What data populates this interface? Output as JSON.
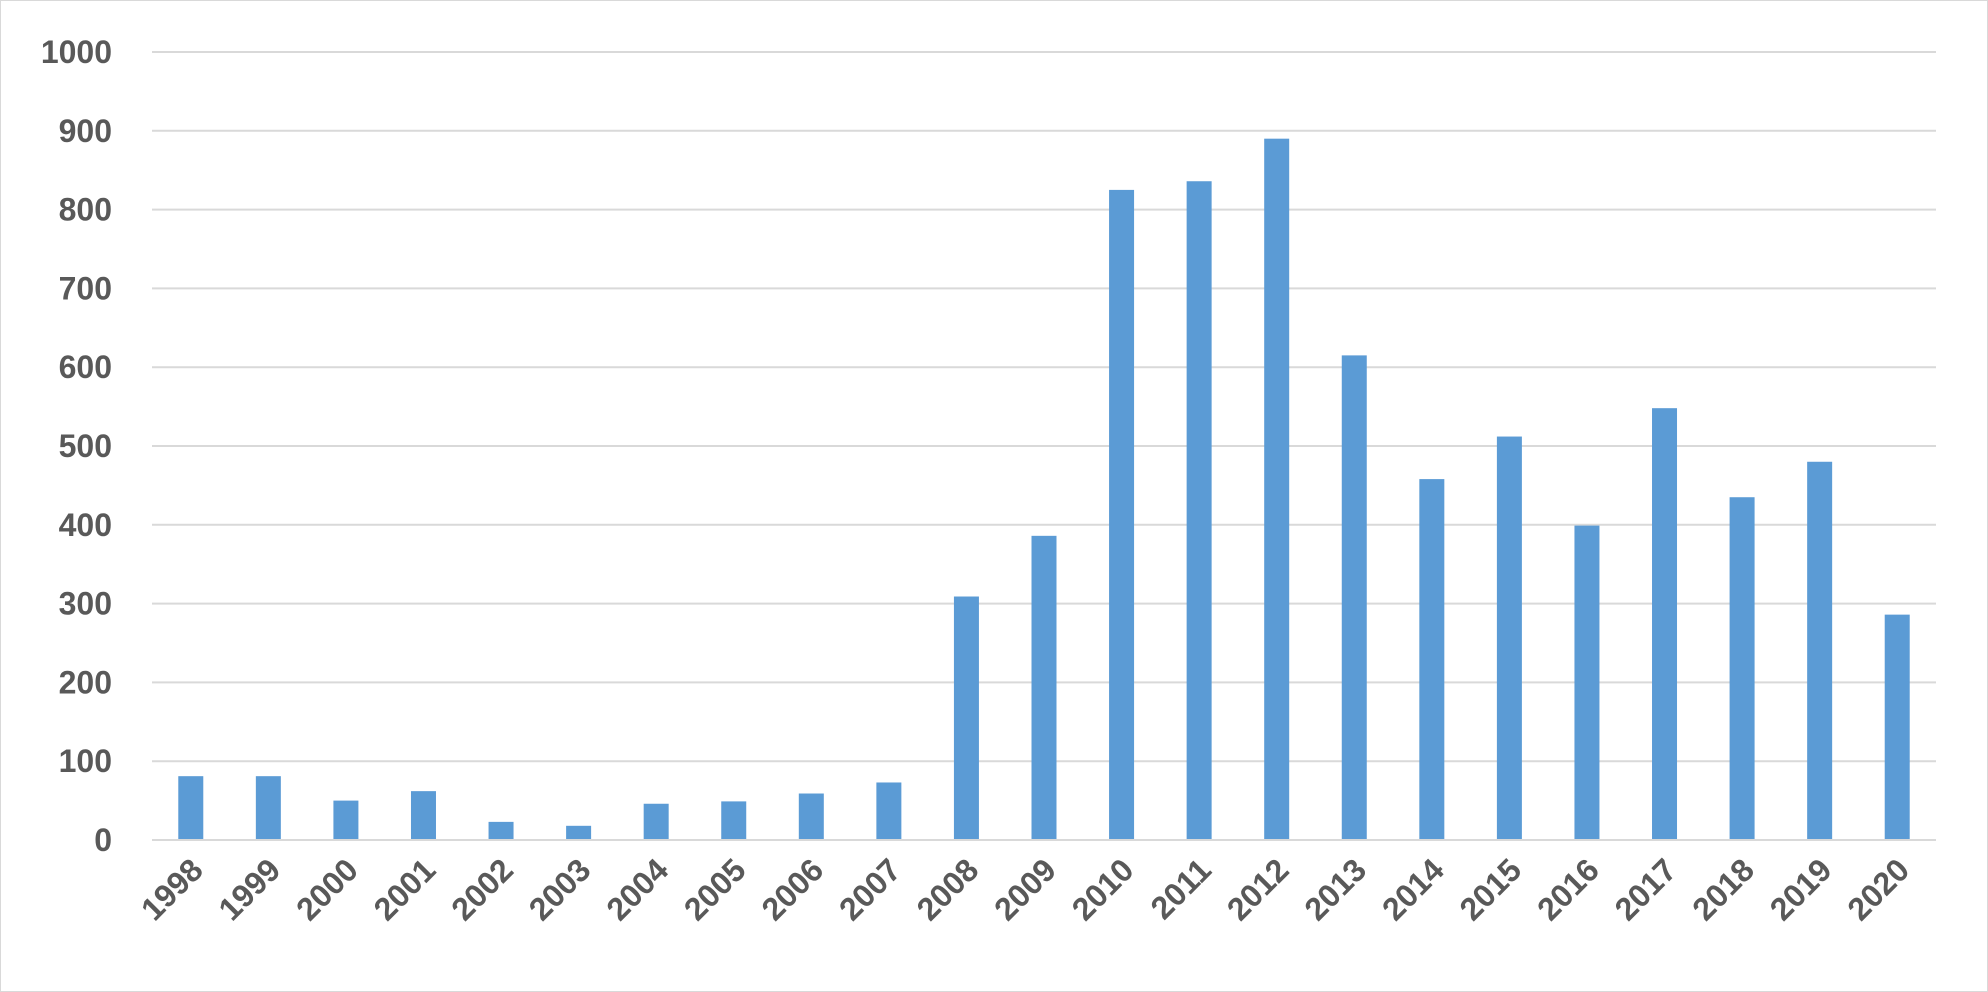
{
  "chart_data": {
    "type": "bar",
    "title": "",
    "xlabel": "",
    "ylabel": "",
    "categories": [
      "1998",
      "1999",
      "2000",
      "2001",
      "2002",
      "2003",
      "2004",
      "2005",
      "2006",
      "2007",
      "2008",
      "2009",
      "2010",
      "2011",
      "2012",
      "2013",
      "2014",
      "2015",
      "2016",
      "2017",
      "2018",
      "2019",
      "2020"
    ],
    "values": [
      81,
      81,
      50,
      62,
      23,
      18,
      46,
      49,
      59,
      73,
      309,
      386,
      825,
      836,
      890,
      615,
      458,
      512,
      399,
      548,
      435,
      480,
      286
    ],
    "ylim": [
      0,
      1000
    ],
    "yticks": [
      0,
      100,
      200,
      300,
      400,
      500,
      600,
      700,
      800,
      900,
      1000
    ],
    "grid": true,
    "legend": "none",
    "colors": {
      "bar": "#5b9bd5",
      "gridline": "#d9d9d9",
      "axis": "#d9d9d9",
      "tick_text": "#595959"
    }
  }
}
